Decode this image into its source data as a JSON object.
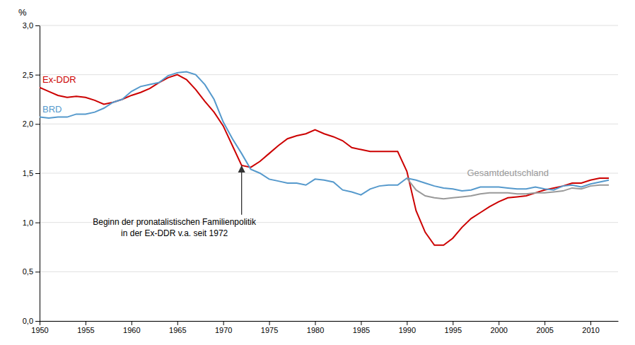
{
  "chart_data": {
    "type": "line",
    "y_label": "%",
    "xlim": [
      1950,
      2013
    ],
    "ylim": [
      0.0,
      3.0
    ],
    "xticks": [
      1950,
      1955,
      1960,
      1965,
      1970,
      1975,
      1980,
      1985,
      1990,
      1995,
      2000,
      2005,
      2010
    ],
    "yticks": [
      {
        "value": 0.0,
        "label": "0,0"
      },
      {
        "value": 0.5,
        "label": "0,5"
      },
      {
        "value": 1.0,
        "label": "1,0"
      },
      {
        "value": 1.5,
        "label": "1,5"
      },
      {
        "value": 2.0,
        "label": "2,0"
      },
      {
        "value": 2.5,
        "label": "2,5"
      },
      {
        "value": 3.0,
        "label": "3,0"
      }
    ],
    "grid": true,
    "series": [
      {
        "name": "Ex-DDR",
        "color": "#cc0000",
        "x": [
          1950,
          1951,
          1952,
          1953,
          1954,
          1955,
          1956,
          1957,
          1958,
          1959,
          1960,
          1961,
          1962,
          1963,
          1964,
          1965,
          1966,
          1967,
          1968,
          1969,
          1970,
          1971,
          1972,
          1973,
          1974,
          1975,
          1976,
          1977,
          1978,
          1979,
          1980,
          1981,
          1982,
          1983,
          1984,
          1985,
          1986,
          1987,
          1988,
          1989,
          1990,
          1991,
          1992,
          1993,
          1994,
          1995,
          1996,
          1997,
          1998,
          1999,
          2000,
          2001,
          2002,
          2003,
          2004,
          2005,
          2006,
          2007,
          2008,
          2009,
          2010,
          2011,
          2012
        ],
        "values": [
          2.37,
          2.33,
          2.29,
          2.27,
          2.28,
          2.27,
          2.24,
          2.2,
          2.22,
          2.25,
          2.29,
          2.32,
          2.36,
          2.42,
          2.47,
          2.5,
          2.45,
          2.35,
          2.23,
          2.12,
          1.98,
          1.78,
          1.58,
          1.56,
          1.62,
          1.7,
          1.78,
          1.85,
          1.88,
          1.9,
          1.94,
          1.9,
          1.87,
          1.83,
          1.76,
          1.74,
          1.72,
          1.72,
          1.72,
          1.72,
          1.52,
          1.12,
          0.9,
          0.77,
          0.77,
          0.84,
          0.95,
          1.04,
          1.1,
          1.16,
          1.21,
          1.25,
          1.26,
          1.27,
          1.3,
          1.33,
          1.35,
          1.37,
          1.4,
          1.4,
          1.43,
          1.45,
          1.45
        ]
      },
      {
        "name": "BRD",
        "color": "#5599cc",
        "x": [
          1950,
          1951,
          1952,
          1953,
          1954,
          1955,
          1956,
          1957,
          1958,
          1959,
          1960,
          1961,
          1962,
          1963,
          1964,
          1965,
          1966,
          1967,
          1968,
          1969,
          1970,
          1971,
          1972,
          1973,
          1974,
          1975,
          1976,
          1977,
          1978,
          1979,
          1980,
          1981,
          1982,
          1983,
          1984,
          1985,
          1986,
          1987,
          1988,
          1989,
          1990,
          1991,
          1992,
          1993,
          1994,
          1995,
          1996,
          1997,
          1998,
          1999,
          2000,
          2001,
          2002,
          2003,
          2004,
          2005,
          2006,
          2007,
          2008,
          2009,
          2010,
          2011,
          2012
        ],
        "values": [
          2.07,
          2.06,
          2.07,
          2.07,
          2.1,
          2.1,
          2.12,
          2.16,
          2.22,
          2.25,
          2.33,
          2.38,
          2.4,
          2.42,
          2.49,
          2.52,
          2.53,
          2.5,
          2.4,
          2.25,
          2.02,
          1.85,
          1.7,
          1.54,
          1.5,
          1.44,
          1.42,
          1.4,
          1.4,
          1.38,
          1.44,
          1.43,
          1.41,
          1.33,
          1.31,
          1.28,
          1.34,
          1.37,
          1.38,
          1.38,
          1.45,
          1.43,
          1.4,
          1.37,
          1.35,
          1.34,
          1.32,
          1.33,
          1.36,
          1.36,
          1.36,
          1.35,
          1.34,
          1.34,
          1.36,
          1.34,
          1.33,
          1.37,
          1.38,
          1.36,
          1.39,
          1.41,
          1.43
        ]
      },
      {
        "name": "Gesamtdeutschland",
        "color": "#999999",
        "x": [
          1990,
          1991,
          1992,
          1993,
          1994,
          1995,
          1996,
          1997,
          1998,
          1999,
          2000,
          2001,
          2002,
          2003,
          2004,
          2005,
          2006,
          2007,
          2008,
          2009,
          2010,
          2011,
          2012
        ],
        "values": [
          1.45,
          1.33,
          1.27,
          1.25,
          1.24,
          1.25,
          1.26,
          1.27,
          1.29,
          1.3,
          1.3,
          1.3,
          1.29,
          1.29,
          1.3,
          1.3,
          1.31,
          1.32,
          1.35,
          1.34,
          1.37,
          1.38,
          1.38
        ]
      }
    ],
    "annotations": [
      {
        "lines": [
          "Beginn der pronatalistischen Familienpolitik",
          "in der Ex-DDR v.a. seit 1972"
        ],
        "x": 1972,
        "y": 1.58
      }
    ]
  }
}
